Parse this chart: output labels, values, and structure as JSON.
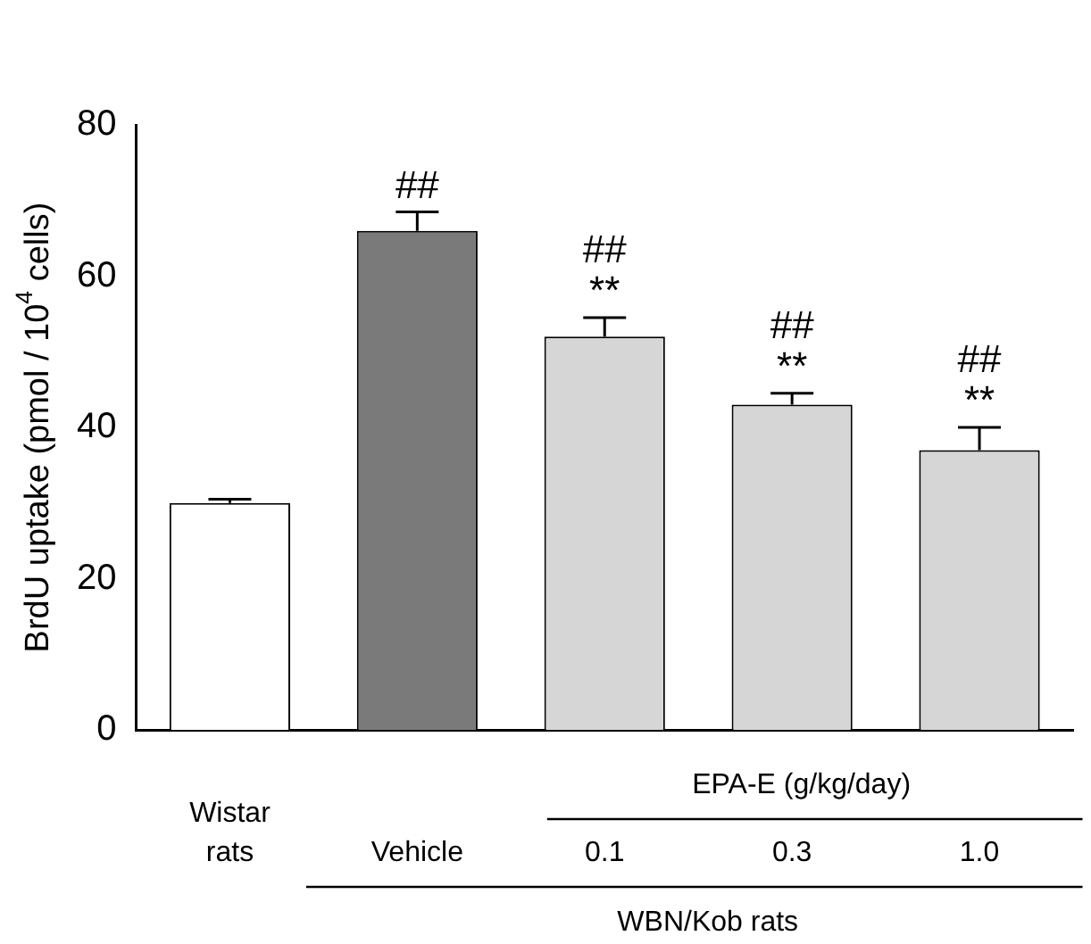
{
  "chart_data": {
    "type": "bar",
    "ylabel": "BrdU uptake (pmol / 10$^{4}$ cells)",
    "categories": [
      "Wistar rats",
      "Vehicle",
      "0.1",
      "0.3",
      "1.0"
    ],
    "values": [
      30,
      66,
      52,
      43,
      37
    ],
    "colors": [
      "#ffffff",
      "#7a7a7a",
      "#d6d6d6",
      "#d6d6d6",
      "#d6d6d6"
    ],
    "errors": [
      [
        30,
        30.5
      ],
      [
        66,
        68.5
      ],
      [
        52,
        54.5
      ],
      [
        43,
        44.5
      ],
      [
        37,
        40
      ]
    ],
    "ylim": [
      0,
      80
    ],
    "yticks": [
      0,
      20,
      40,
      60,
      80
    ],
    "grid": false,
    "legend": false,
    "annotations": [
      "##",
      "##",
      "**",
      "##",
      "**",
      "##",
      "**",
      "EPA-E (g/kg/day)",
      "WBN/Kob rats"
    ]
  }
}
